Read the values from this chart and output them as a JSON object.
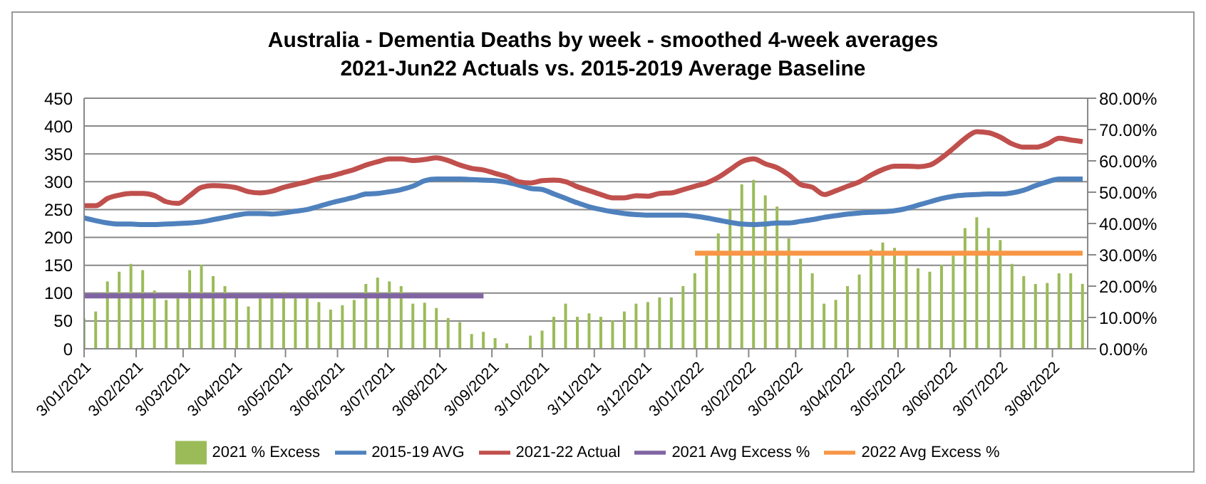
{
  "chart_data": {
    "type": "bar",
    "title": "Australia - Dementia Deaths by week - smoothed 4-week averages",
    "subtitle": "2021-Jun22 Actuals vs. 2015-2019 Average Baseline",
    "x": [
      "2021-01-03",
      "2021-01-10",
      "2021-01-17",
      "2021-01-24",
      "2021-01-31",
      "2021-02-07",
      "2021-02-14",
      "2021-02-21",
      "2021-02-28",
      "2021-03-07",
      "2021-03-14",
      "2021-03-21",
      "2021-03-28",
      "2021-04-04",
      "2021-04-11",
      "2021-04-18",
      "2021-04-25",
      "2021-05-02",
      "2021-05-09",
      "2021-05-16",
      "2021-05-23",
      "2021-05-30",
      "2021-06-06",
      "2021-06-13",
      "2021-06-20",
      "2021-06-27",
      "2021-07-04",
      "2021-07-11",
      "2021-07-18",
      "2021-07-25",
      "2021-08-01",
      "2021-08-08",
      "2021-08-15",
      "2021-08-22",
      "2021-08-29",
      "2021-09-05",
      "2021-09-12",
      "2021-09-19",
      "2021-09-26",
      "2021-10-03",
      "2021-10-10",
      "2021-10-17",
      "2021-10-24",
      "2021-10-31",
      "2021-11-07",
      "2021-11-14",
      "2021-11-21",
      "2021-11-28",
      "2021-12-05",
      "2021-12-12",
      "2021-12-19",
      "2021-12-26",
      "2022-01-02",
      "2022-01-09",
      "2022-01-16",
      "2022-01-23",
      "2022-01-30",
      "2022-02-06",
      "2022-02-13",
      "2022-02-20",
      "2022-02-27",
      "2022-03-06",
      "2022-03-13",
      "2022-03-20",
      "2022-03-27",
      "2022-04-03",
      "2022-04-10",
      "2022-04-17",
      "2022-04-24",
      "2022-05-01",
      "2022-05-08",
      "2022-05-15",
      "2022-05-22",
      "2022-05-29",
      "2022-06-05",
      "2022-06-12",
      "2022-06-19",
      "2022-06-26",
      "2022-07-03",
      "2022-07-10",
      "2022-07-17",
      "2022-07-24",
      "2022-07-31",
      "2022-08-07",
      "2022-08-14",
      "2022-08-21"
    ],
    "series": [
      {
        "name": "2021 % Excess",
        "axis": "y2",
        "color": "#9bbb59",
        "values": [
          9.8,
          11.9,
          21.5,
          24.6,
          27.1,
          25.1,
          18.6,
          15.6,
          16.1,
          25.1,
          26.8,
          23.2,
          20.0,
          16.6,
          13.5,
          16.1,
          16.1,
          18.1,
          16.1,
          16.1,
          14.9,
          12.5,
          13.9,
          15.6,
          20.7,
          22.7,
          21.5,
          20.0,
          14.4,
          14.7,
          13.0,
          9.8,
          8.5,
          4.7,
          5.4,
          3.4,
          1.7,
          0,
          4.2,
          5.8,
          10.2,
          14.4,
          10.2,
          11.3,
          10.2,
          9.0,
          11.9,
          14.4,
          14.9,
          16.4,
          16.4,
          20.0,
          24.1,
          29.7,
          36.8,
          44.8,
          52.5,
          53.9,
          49.0,
          45.4,
          35.2,
          28.8,
          24.1,
          14.4,
          15.6,
          20.0,
          23.7,
          31.7,
          33.9,
          32.2,
          30.2,
          25.7,
          24.6,
          26.8,
          29.7,
          38.5,
          42.0,
          38.6,
          34.7,
          27.1,
          23.2,
          20.7,
          21.0,
          24.1,
          24.1,
          20.7
        ]
      },
      {
        "name": "2015-19 AVG",
        "type": "line",
        "color": "#4f81bd",
        "values": [
          235,
          230,
          226,
          224,
          224,
          223,
          223,
          224,
          225,
          226,
          228,
          232,
          236,
          240,
          243,
          243,
          242,
          244,
          247,
          250,
          256,
          262,
          267,
          272,
          278,
          279,
          282,
          286,
          292,
          302,
          305,
          305,
          305,
          304,
          303,
          302,
          299,
          294,
          288,
          286,
          278,
          270,
          262,
          255,
          250,
          246,
          243,
          241,
          240,
          240,
          240,
          240,
          238,
          235,
          231,
          227,
          224,
          223,
          224,
          226,
          226,
          229,
          232,
          236,
          239,
          242,
          244,
          245,
          246,
          248,
          252,
          258,
          264,
          270,
          274,
          276,
          277,
          278,
          278,
          280,
          285,
          293,
          300,
          305,
          305,
          305
        ]
      },
      {
        "name": "2021-22 Actual",
        "type": "line",
        "color": "#c0504d",
        "values": [
          257,
          257,
          270,
          276,
          279,
          279,
          275,
          264,
          261,
          275,
          290,
          293,
          292,
          289,
          282,
          280,
          283,
          290,
          295,
          300,
          306,
          310,
          316,
          322,
          330,
          336,
          341,
          341,
          338,
          340,
          343,
          338,
          330,
          324,
          321,
          315,
          309,
          300,
          298,
          302,
          303,
          300,
          291,
          284,
          277,
          271,
          271,
          275,
          274,
          279,
          280,
          286,
          292,
          298,
          308,
          322,
          336,
          341,
          332,
          325,
          312,
          295,
          290,
          277,
          284,
          292,
          300,
          312,
          322,
          328,
          328,
          327,
          330,
          343,
          360,
          378,
          390,
          388,
          380,
          368,
          362,
          362,
          368,
          378,
          375,
          372
        ]
      },
      {
        "name": "2021 Avg Excess %",
        "type": "line",
        "axis": "y2",
        "color": "#8064a2",
        "values": [
          16.9,
          16.9,
          16.9,
          16.9,
          16.9,
          16.9,
          16.9,
          16.9,
          16.9,
          16.9,
          16.9,
          16.9,
          16.9,
          16.9,
          16.9,
          16.9,
          16.9,
          16.9,
          16.9,
          16.9,
          16.9,
          16.9,
          16.9,
          16.9,
          16.9,
          16.9,
          16.9,
          16.9,
          16.9,
          16.9,
          16.9,
          16.9,
          16.9,
          16.9,
          16.9,
          null,
          null,
          null,
          null,
          null,
          null,
          null,
          null,
          null,
          null,
          null,
          null,
          null,
          null,
          null,
          null,
          null,
          null,
          null,
          null,
          null,
          null,
          null,
          null,
          null,
          null,
          null,
          null,
          null,
          null,
          null,
          null,
          null,
          null,
          null,
          null,
          null,
          null,
          null,
          null,
          null,
          null,
          null,
          null,
          null,
          null,
          null,
          null,
          null,
          null,
          null
        ]
      },
      {
        "name": "2022 Avg Excess %",
        "type": "line",
        "axis": "y2",
        "color": "#f79646",
        "values": [
          null,
          null,
          null,
          null,
          null,
          null,
          null,
          null,
          null,
          null,
          null,
          null,
          null,
          null,
          null,
          null,
          null,
          null,
          null,
          null,
          null,
          null,
          null,
          null,
          null,
          null,
          null,
          null,
          null,
          null,
          null,
          null,
          null,
          null,
          null,
          null,
          null,
          null,
          null,
          null,
          null,
          null,
          null,
          null,
          null,
          null,
          null,
          null,
          null,
          null,
          null,
          null,
          30.5,
          30.5,
          30.5,
          30.5,
          30.5,
          30.5,
          30.5,
          30.5,
          30.5,
          30.5,
          30.5,
          30.5,
          30.5,
          30.5,
          30.5,
          30.5,
          30.5,
          30.5,
          30.5,
          30.5,
          30.5,
          30.5,
          30.5,
          30.5,
          30.5,
          30.5,
          30.5,
          30.5,
          30.5,
          30.5,
          30.5,
          30.5,
          30.5,
          30.5
        ]
      }
    ],
    "xlim": [
      "2021-01-03",
      "2022-08-24"
    ],
    "xticks": [
      {
        "value": "2021-01-03",
        "label": "3/01/2021"
      },
      {
        "value": "2021-02-03",
        "label": "3/02/2021"
      },
      {
        "value": "2021-03-03",
        "label": "3/03/2021"
      },
      {
        "value": "2021-04-03",
        "label": "3/04/2021"
      },
      {
        "value": "2021-05-03",
        "label": "3/05/2021"
      },
      {
        "value": "2021-06-03",
        "label": "3/06/2021"
      },
      {
        "value": "2021-07-03",
        "label": "3/07/2021"
      },
      {
        "value": "2021-08-03",
        "label": "3/08/2021"
      },
      {
        "value": "2021-09-03",
        "label": "3/09/2021"
      },
      {
        "value": "2021-10-03",
        "label": "3/10/2021"
      },
      {
        "value": "2021-11-03",
        "label": "3/11/2021"
      },
      {
        "value": "2021-12-03",
        "label": "3/12/2021"
      },
      {
        "value": "2022-01-03",
        "label": "3/01/2022"
      },
      {
        "value": "2022-02-03",
        "label": "3/02/2022"
      },
      {
        "value": "2022-03-03",
        "label": "3/03/2022"
      },
      {
        "value": "2022-04-03",
        "label": "3/04/2022"
      },
      {
        "value": "2022-05-03",
        "label": "3/05/2022"
      },
      {
        "value": "2022-06-03",
        "label": "3/06/2022"
      },
      {
        "value": "2022-07-03",
        "label": "3/07/2022"
      },
      {
        "value": "2022-08-03",
        "label": "3/08/2022"
      }
    ],
    "ylim": [
      0,
      450
    ],
    "yticks": [
      0,
      50,
      100,
      150,
      200,
      250,
      300,
      350,
      400,
      450
    ],
    "y2lim": [
      0,
      80
    ],
    "y2ticks": [
      {
        "value": 0,
        "label": "0.00%"
      },
      {
        "value": 10,
        "label": "10.00%"
      },
      {
        "value": 20,
        "label": "20.00%"
      },
      {
        "value": 30,
        "label": "30.00%"
      },
      {
        "value": 40,
        "label": "40.00%"
      },
      {
        "value": 50,
        "label": "50.00%"
      },
      {
        "value": 60,
        "label": "60.00%"
      },
      {
        "value": 70,
        "label": "70.00%"
      },
      {
        "value": 80,
        "label": "80.00%"
      }
    ],
    "grid": "y",
    "legend": "bottom",
    "marker": "none"
  }
}
